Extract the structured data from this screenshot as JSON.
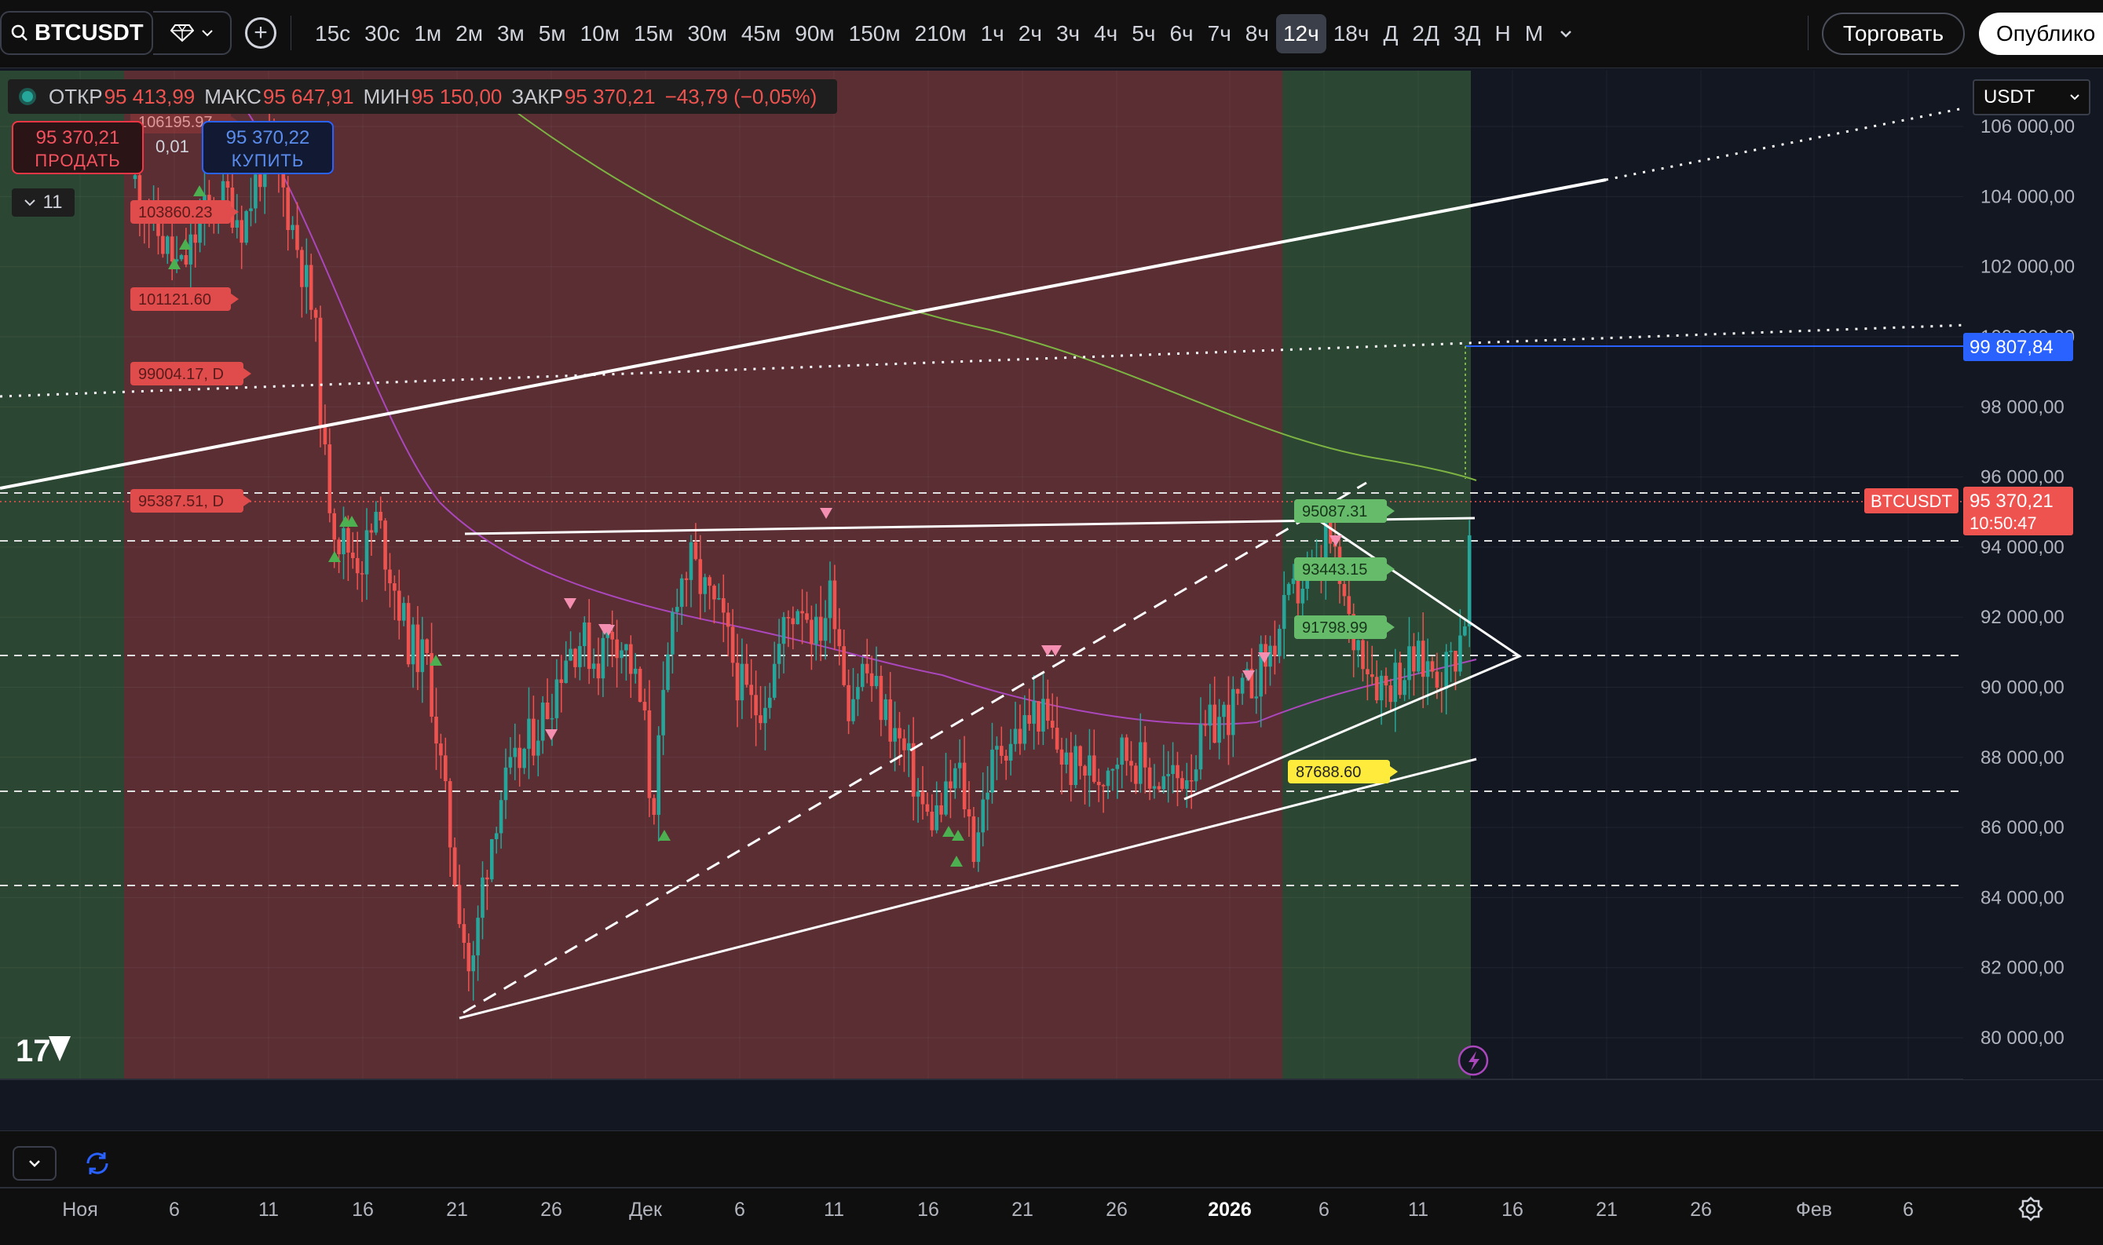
{
  "toolbar": {
    "symbol": "BTCUSDT",
    "intervals": [
      "15с",
      "30с",
      "1м",
      "2м",
      "3м",
      "5м",
      "10м",
      "15м",
      "30м",
      "45м",
      "90м",
      "150м",
      "210м",
      "1ч",
      "2ч",
      "3ч",
      "4ч",
      "5ч",
      "6ч",
      "7ч",
      "8ч",
      "12ч",
      "18ч",
      "Д",
      "2Д",
      "3Д",
      "Н",
      "М"
    ],
    "active_interval": "12ч",
    "trade_label": "Торговать",
    "publish_label": "Опублико"
  },
  "legend": {
    "open_label": "ОТКР",
    "open": "95 413,99",
    "high_label": "МАКС",
    "high": "95 647,91",
    "low_label": "МИН",
    "low": "95 150,00",
    "close_label": "ЗАКР",
    "close": "95 370,21",
    "change": "−43,79 (−0,05%)"
  },
  "trade_panel": {
    "sell_price": "95 370,21",
    "sell_label": "ПРОДАТЬ",
    "spread": "0,01",
    "buy_price": "95 370,22",
    "buy_label": "КУПИТЬ"
  },
  "indicator_collapse": {
    "count": "11"
  },
  "currency_select": {
    "value": "USDT"
  },
  "price_axis": {
    "ticks": [
      "106 000,00",
      "104 000,00",
      "102 000,00",
      "100 000,00",
      "98 000,00",
      "96 000,00",
      "94 000,00",
      "92 000,00",
      "90 000,00",
      "88 000,00",
      "86 000,00",
      "84 000,00",
      "82 000,00",
      "80 000,00"
    ],
    "alert_label": "99 807,84",
    "last_price": "95 370,21",
    "countdown": "10:50:47",
    "symbol_tag": "BTCUSDT"
  },
  "time_axis": {
    "labels": [
      "Ноя",
      "6",
      "11",
      "16",
      "21",
      "26",
      "Дек",
      "6",
      "11",
      "16",
      "21",
      "26",
      "2026",
      "6",
      "11",
      "16",
      "21",
      "26",
      "Фев",
      "6"
    ]
  },
  "chart_labels": {
    "red": [
      "106195.97",
      "103860.23",
      "101121.60",
      "99004.17, D",
      "95387.51, D"
    ],
    "green": [
      "95087.31",
      "93443.15",
      "91798.99"
    ],
    "yellow": [
      "87688.60"
    ]
  },
  "colors": {
    "up": "#26a69a",
    "down": "#ef5350",
    "red_zone": "#5a2e33",
    "green_zone": "#2b4632",
    "bg": "#131722",
    "alert": "#2962ff",
    "ma_slow": "#7cb342",
    "ma_fast": "#ab47bc"
  },
  "chart_data": {
    "type": "candlestick",
    "timeframe": "12ч",
    "symbol": "BTCUSDT",
    "ylim": [
      79000,
      107000
    ],
    "candles": [],
    "ohlc_last": {
      "open": 95413.99,
      "high": 95647.91,
      "low": 95150.0,
      "close": 95370.21
    }
  }
}
